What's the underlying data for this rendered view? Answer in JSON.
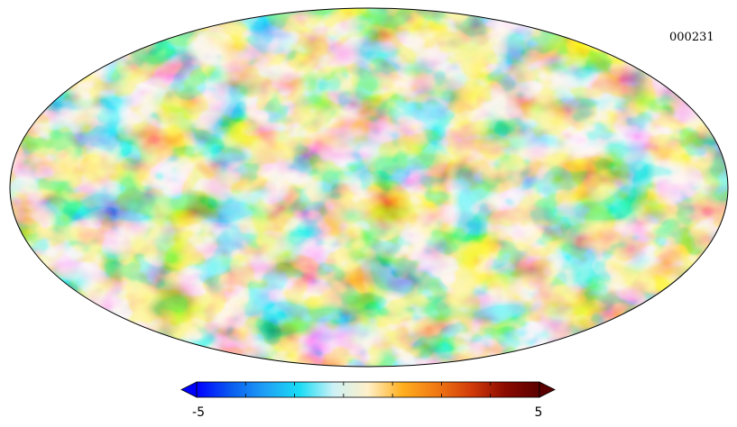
{
  "map": {
    "identifier": "000231",
    "projection": "mollweide"
  },
  "colorbar": {
    "min_label": "-5",
    "max_label": "5",
    "min_value": -5,
    "max_value": 5,
    "tick_count": 8,
    "colors": [
      "#0000ff",
      "#0a5cf0",
      "#1ea0f5",
      "#19dcf5",
      "#cdf1f6",
      "#fff0c8",
      "#ffaf1e",
      "#f07814",
      "#d23c0a",
      "#8c0a00",
      "#5a0000"
    ]
  }
}
